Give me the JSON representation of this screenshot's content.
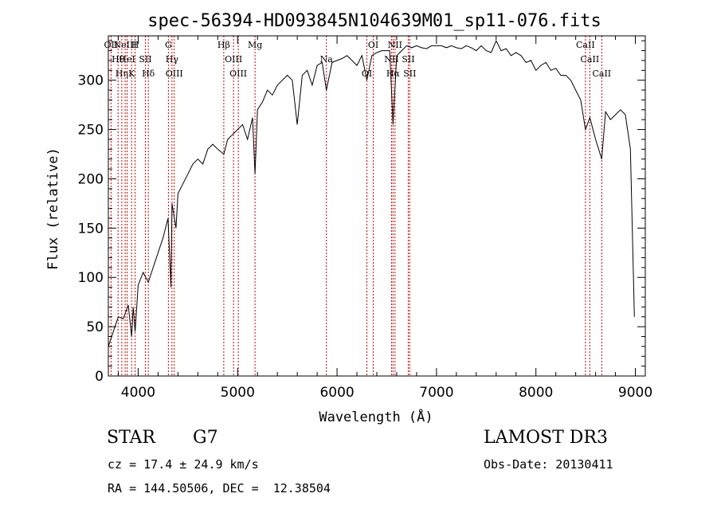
{
  "chart_data": {
    "type": "line",
    "title": "spec-56394-HD093845N104639M01_sp11-076.fits",
    "xlabel": "Wavelength (Å)",
    "ylabel": "Flux (relative)",
    "xlim": [
      3700,
      9100
    ],
    "ylim": [
      0,
      345
    ],
    "x_ticks": [
      4000,
      5000,
      6000,
      7000,
      8000,
      9000
    ],
    "y_ticks": [
      0,
      50,
      100,
      150,
      200,
      250,
      300
    ],
    "grid": false,
    "line_color": "#000000",
    "marker_color": "#cc0000",
    "series": [
      {
        "x": [
          3700,
          3750,
          3800,
          3850,
          3900,
          3934,
          3950,
          3969,
          4000,
          4050,
          4102,
          4150,
          4200,
          4250,
          4300,
          4330,
          4340,
          4380,
          4400,
          4450,
          4500,
          4550,
          4600,
          4650,
          4700,
          4750,
          4800,
          4861,
          4900,
          4950,
          5000,
          5050,
          5100,
          5150,
          5175,
          5200,
          5250,
          5300,
          5350,
          5400,
          5450,
          5500,
          5550,
          5600,
          5650,
          5700,
          5750,
          5800,
          5850,
          5893,
          5950,
          6000,
          6050,
          6100,
          6150,
          6200,
          6250,
          6300,
          6350,
          6400,
          6450,
          6500,
          6530,
          6563,
          6600,
          6650,
          6700,
          6750,
          6800,
          6850,
          6900,
          6950,
          7000,
          7050,
          7100,
          7150,
          7200,
          7250,
          7300,
          7350,
          7400,
          7450,
          7500,
          7550,
          7600,
          7650,
          7700,
          7750,
          7800,
          7850,
          7900,
          7950,
          8000,
          8050,
          8100,
          8150,
          8200,
          8250,
          8300,
          8350,
          8400,
          8450,
          8498,
          8542,
          8600,
          8662,
          8700,
          8750,
          8800,
          8850,
          8900,
          8950,
          8990
        ],
        "y": [
          30,
          45,
          60,
          58,
          72,
          40,
          70,
          45,
          92,
          105,
          95,
          110,
          125,
          140,
          160,
          90,
          175,
          150,
          185,
          195,
          205,
          215,
          220,
          215,
          230,
          235,
          230,
          225,
          240,
          245,
          250,
          255,
          240,
          262,
          205,
          270,
          278,
          290,
          285,
          295,
          300,
          305,
          300,
          255,
          305,
          310,
          295,
          315,
          318,
          290,
          318,
          320,
          322,
          325,
          320,
          315,
          325,
          300,
          325,
          328,
          330,
          330,
          330,
          255,
          325,
          330,
          335,
          333,
          335,
          333,
          332,
          335,
          335,
          335,
          333,
          335,
          333,
          332,
          335,
          333,
          330,
          335,
          330,
          328,
          340,
          330,
          332,
          325,
          328,
          325,
          318,
          320,
          310,
          315,
          318,
          310,
          312,
          305,
          305,
          300,
          290,
          280,
          250,
          262,
          240,
          220,
          268,
          260,
          265,
          270,
          265,
          230,
          60
        ]
      }
    ],
    "lines": [
      {
        "wave": 3727,
        "labels": [
          "OII"
        ]
      },
      {
        "wave": 3798,
        "labels": [
          "Hθ"
        ]
      },
      {
        "wave": 3835,
        "labels": [
          "Hη"
        ]
      },
      {
        "wave": 3869,
        "labels": [
          "NeIII"
        ]
      },
      {
        "wave": 3889,
        "labels": [
          "HeI"
        ]
      },
      {
        "wave": 3934,
        "labels": [
          "K"
        ]
      },
      {
        "wave": 3969,
        "labels": [
          "H"
        ]
      },
      {
        "wave": 4072,
        "labels": [
          "SII"
        ]
      },
      {
        "wave": 4102,
        "labels": [
          "Hδ"
        ]
      },
      {
        "wave": 4304,
        "labels": [
          "G"
        ]
      },
      {
        "wave": 4340,
        "labels": [
          "Hγ"
        ]
      },
      {
        "wave": 4363,
        "labels": [
          "OIII"
        ]
      },
      {
        "wave": 4861,
        "labels": [
          "Hβ"
        ]
      },
      {
        "wave": 4959,
        "labels": [
          "OIII"
        ]
      },
      {
        "wave": 5007,
        "labels": [
          "OIII"
        ]
      },
      {
        "wave": 5175,
        "labels": [
          "Mg"
        ]
      },
      {
        "wave": 5893,
        "labels": [
          "Na"
        ]
      },
      {
        "wave": 6300,
        "labels": [
          "OI"
        ]
      },
      {
        "wave": 6364,
        "labels": [
          "OI"
        ]
      },
      {
        "wave": 6548,
        "labels": [
          "NII"
        ]
      },
      {
        "wave": 6563,
        "labels": [
          "Hα"
        ]
      },
      {
        "wave": 6583,
        "labels": [
          "NII"
        ]
      },
      {
        "wave": 6716,
        "labels": [
          "SII"
        ]
      },
      {
        "wave": 6731,
        "labels": [
          "SII"
        ]
      },
      {
        "wave": 8498,
        "labels": [
          "CaII"
        ]
      },
      {
        "wave": 8542,
        "labels": [
          "CaII"
        ]
      },
      {
        "wave": 8662,
        "labels": [
          "CaII"
        ]
      }
    ]
  },
  "info": {
    "object_class": "STAR",
    "subclass": "G7",
    "survey": "LAMOST DR3",
    "cz": "cz = 17.4 ± 24.9 km/s",
    "obs_date": "Obs-Date: 20130411",
    "radec": "RA = 144.50506, DEC =  12.38504"
  }
}
